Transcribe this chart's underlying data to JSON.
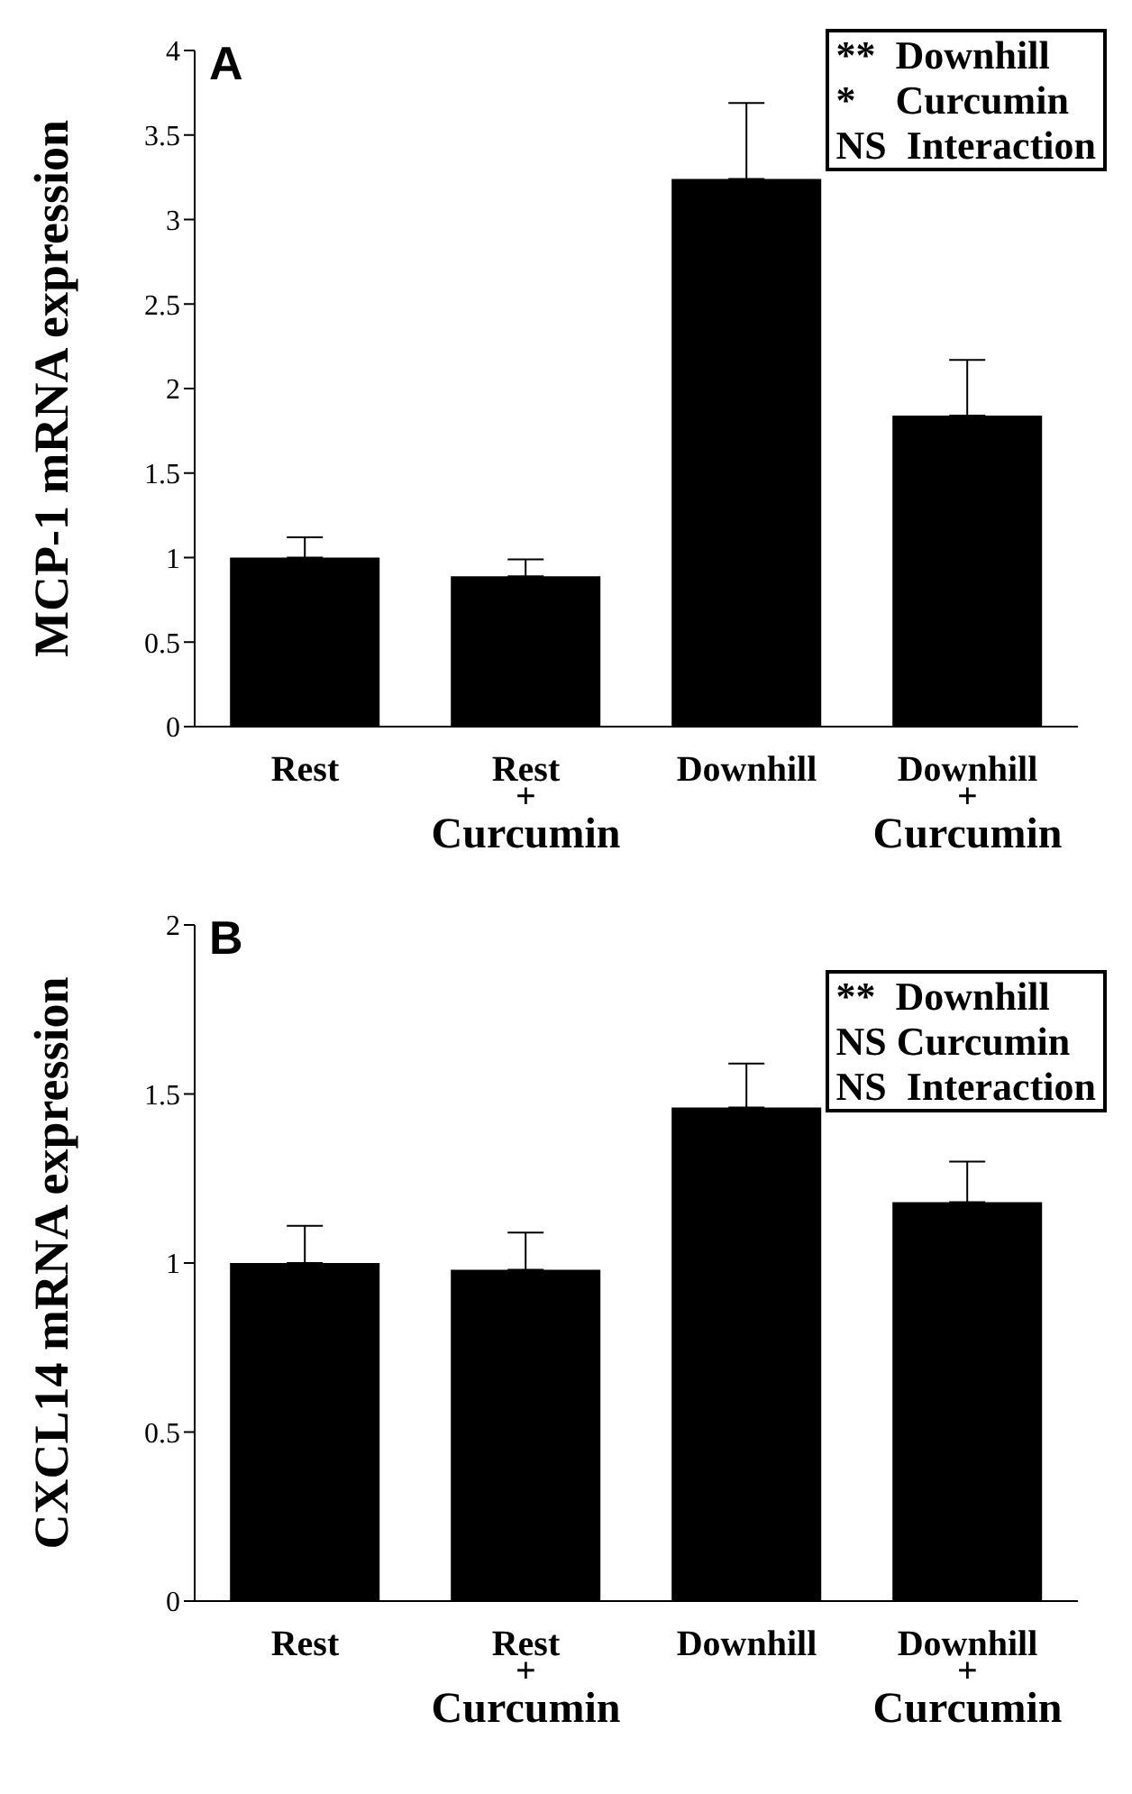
{
  "chart_data": [
    {
      "type": "bar",
      "title": "A",
      "ylabel": "MCP-1 mRNA expression",
      "categories": [
        "Rest",
        "Rest\n+\nCurcumin",
        "Downhill",
        "Downhill\n+\nCurcumin"
      ],
      "values": [
        1.0,
        0.89,
        3.24,
        1.84
      ],
      "errors": [
        [
          1.0,
          1.12
        ],
        [
          0.89,
          0.99
        ],
        [
          3.24,
          3.69
        ],
        [
          1.84,
          2.17
        ]
      ],
      "color": "#000000",
      "ylim": [
        0,
        4
      ],
      "yticks": [
        0,
        0.5,
        1,
        1.5,
        2,
        2.5,
        3,
        3.5,
        4
      ],
      "grid": false,
      "annotations": [
        "**  Downhill",
        "*    Curcumin",
        "NS  Interaction"
      ]
    },
    {
      "type": "bar",
      "title": "B",
      "ylabel": "CXCL14 mRNA expression",
      "categories": [
        "Rest",
        "Rest\n+\nCurcumin",
        "Downhill",
        "Downhill\n+\nCurcumin"
      ],
      "values": [
        1.0,
        0.98,
        1.46,
        1.18
      ],
      "errors": [
        [
          1.0,
          1.11
        ],
        [
          0.98,
          1.09
        ],
        [
          1.46,
          1.59
        ],
        [
          1.18,
          1.3
        ]
      ],
      "color": "#000000",
      "ylim": [
        0,
        2
      ],
      "yticks": [
        0,
        0.5,
        1,
        1.5,
        2
      ],
      "grid": false,
      "annotations": [
        "**  Downhill",
        "NS Curcumin",
        "NS  Interaction"
      ]
    }
  ]
}
